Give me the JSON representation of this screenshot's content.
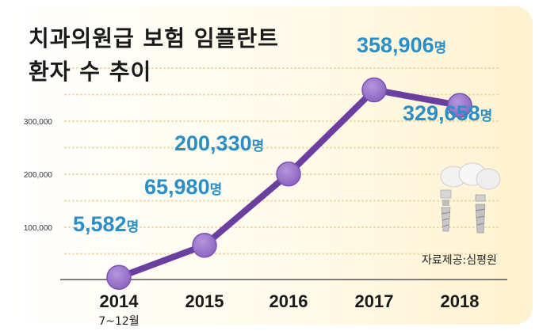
{
  "title": "치과의원급 보험 임플란트",
  "subtitle": "환자 수 추이",
  "source": "자료제공:심평원",
  "chart_data": {
    "type": "line",
    "categories": [
      "2014",
      "2015",
      "2016",
      "2017",
      "2018"
    ],
    "category_notes": [
      "7~12월",
      "",
      "",
      "",
      ""
    ],
    "values": [
      5582,
      65980,
      200330,
      358906,
      329658
    ],
    "data_labels": [
      "5,582명",
      "65,980명",
      "200,330명",
      "358,906명",
      "329,658명"
    ],
    "y_ticks": [
      100000,
      200000,
      300000
    ],
    "y_tick_labels": [
      "100,000",
      "200,000",
      "300,000"
    ],
    "grid": true,
    "title": "치과의원급 보험 임플란트 환자 수 추이",
    "xlabel": "",
    "ylabel": "",
    "line_color": "#6a3fa0",
    "marker_color": "#9a72c8",
    "label_color": "#2a8fc7",
    "background_gradient": [
      "#ffffff",
      "#fff6d8"
    ]
  }
}
